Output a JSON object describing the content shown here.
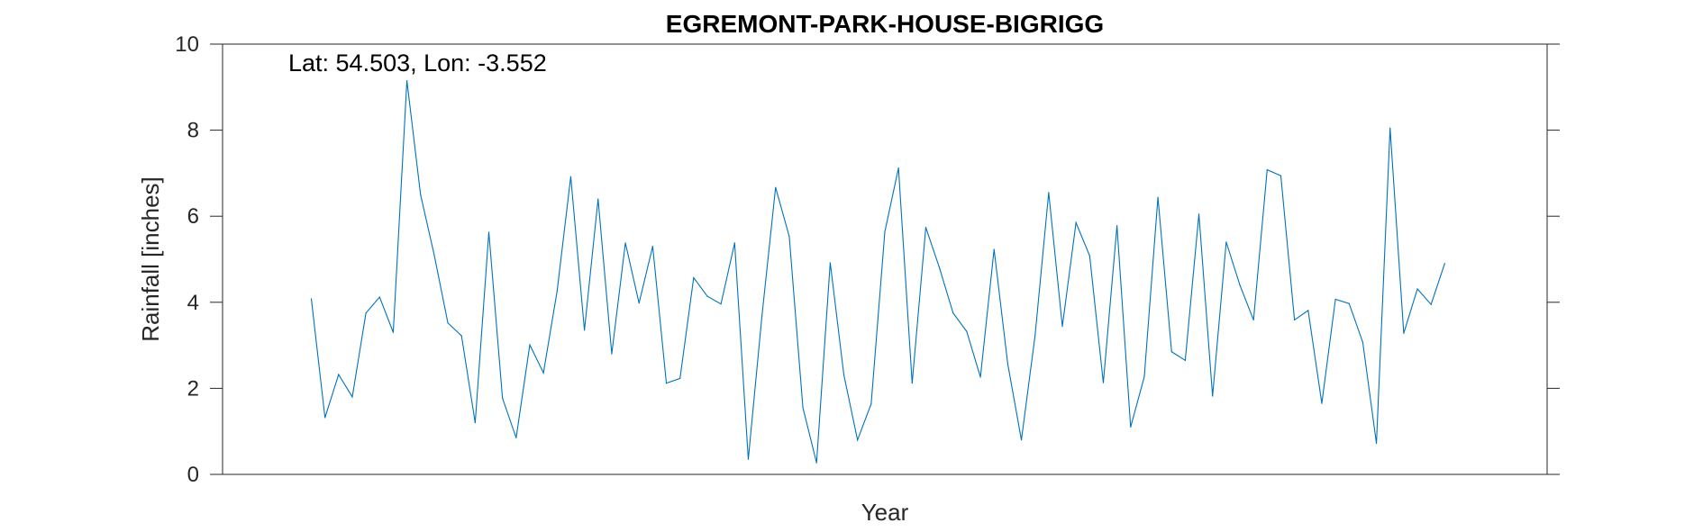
{
  "chart_data": {
    "type": "line",
    "title": "EGREMONT-PARK-HOUSE-BIGRIGG",
    "xlabel": "Year",
    "ylabel": "Rainfall [inches]",
    "annotation": "Lat: 54.503, Lon: -3.552",
    "ylim": [
      0,
      10
    ],
    "yticks": [
      0,
      2,
      4,
      6,
      8,
      10
    ],
    "xlim": [
      -5.5,
      91.5
    ],
    "grid": false,
    "series": [
      {
        "color": "#0072BD",
        "x": [
          1,
          2,
          3,
          4,
          5,
          6,
          7,
          8,
          9,
          10,
          11,
          12,
          13,
          14,
          15,
          16,
          17,
          18,
          19,
          20,
          21,
          22,
          23,
          24,
          25,
          26,
          27,
          28,
          29,
          30,
          31,
          32,
          33,
          34,
          35,
          36,
          37,
          38,
          39,
          40,
          41,
          42,
          43,
          44,
          45,
          46,
          47,
          48,
          49,
          50,
          51,
          52,
          53,
          54,
          55,
          56,
          57,
          58,
          59,
          60,
          61,
          62,
          63,
          64,
          65,
          66,
          67,
          68,
          69,
          70,
          71,
          72,
          73,
          74,
          75,
          76,
          77,
          78,
          79,
          80,
          81,
          82,
          83,
          84
        ],
        "values": [
          4.08,
          1.32,
          2.32,
          1.8,
          3.75,
          4.12,
          3.3,
          9.15,
          6.5,
          5.1,
          3.52,
          3.22,
          1.2,
          5.63,
          1.77,
          0.85,
          3.01,
          2.36,
          4.26,
          6.92,
          3.35,
          6.4,
          2.8,
          5.38,
          3.98,
          5.3,
          2.12,
          2.23,
          4.57,
          4.14,
          3.96,
          5.38,
          0.35,
          3.68,
          6.67,
          5.53,
          1.55,
          0.27,
          4.92,
          2.31,
          0.8,
          1.64,
          5.64,
          7.12,
          2.12,
          5.74,
          4.8,
          3.75,
          3.32,
          2.26,
          5.23,
          2.57,
          0.8,
          3.22,
          6.55,
          3.44,
          5.85,
          5.08,
          2.13,
          5.78,
          1.1,
          2.27,
          6.44,
          2.85,
          2.65,
          6.05,
          1.82,
          5.4,
          4.4,
          3.59,
          7.08,
          6.94,
          3.59,
          3.81,
          1.65,
          4.07,
          3.97,
          3.07,
          0.72,
          8.05,
          3.28,
          4.31,
          3.95,
          4.9
        ]
      }
    ]
  }
}
